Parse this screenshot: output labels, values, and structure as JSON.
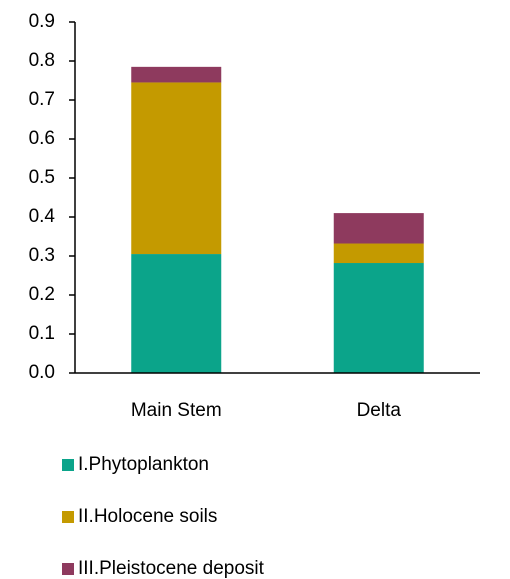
{
  "chart_data": {
    "type": "stacked_bar",
    "categories": [
      "Main Stem",
      "Delta"
    ],
    "series": [
      {
        "name": "I.Phytoplankton",
        "color": "#0ba48a",
        "values": [
          0.305,
          0.282
        ]
      },
      {
        "name": "II.Holocene soils",
        "color": "#c49a00",
        "values": [
          0.44,
          0.05
        ]
      },
      {
        "name": "III.Pleistocene deposit",
        "color": "#8e3a5e",
        "values": [
          0.04,
          0.078
        ]
      }
    ],
    "ylim": [
      0,
      0.9
    ],
    "yticks": [
      {
        "value": 0,
        "label": "0.0"
      },
      0.1,
      0.2,
      0.3,
      0.4,
      0.5,
      0.6,
      0.7,
      0.8,
      0.9
    ],
    "grid": false,
    "legend": "bottom"
  }
}
